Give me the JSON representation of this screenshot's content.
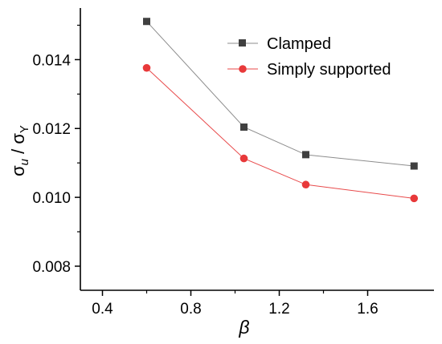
{
  "chart_data": {
    "type": "line",
    "title": "",
    "xlabel": "β",
    "ylabel": {
      "sigma": "σ",
      "u": "u",
      "slash": " / ",
      "Y": "Y"
    },
    "x": [
      0.6,
      1.04,
      1.32,
      1.81
    ],
    "xlim": [
      0.3,
      1.9
    ],
    "ylim": [
      0.0073,
      0.0155
    ],
    "xticks": [
      0.4,
      0.8,
      1.2,
      1.6
    ],
    "xtick_labels": [
      "0.4",
      "0.8",
      "1.2",
      "1.6"
    ],
    "yticks": [
      0.008,
      0.01,
      0.012,
      0.014
    ],
    "ytick_labels": [
      "0.008",
      "0.010",
      "0.012",
      "0.014"
    ],
    "grid": false,
    "legend_position": "top-right",
    "series": [
      {
        "name": "Clamped",
        "values": [
          0.01511,
          0.01204,
          0.01124,
          0.01091
        ],
        "line_color": "#8c8c8c",
        "marker_color": "#404040",
        "marker": "square"
      },
      {
        "name": "Simply supported",
        "values": [
          0.01376,
          0.01113,
          0.01037,
          0.00997
        ],
        "line_color": "#e8494a",
        "marker_color": "#e8393a",
        "marker": "circle"
      }
    ]
  }
}
